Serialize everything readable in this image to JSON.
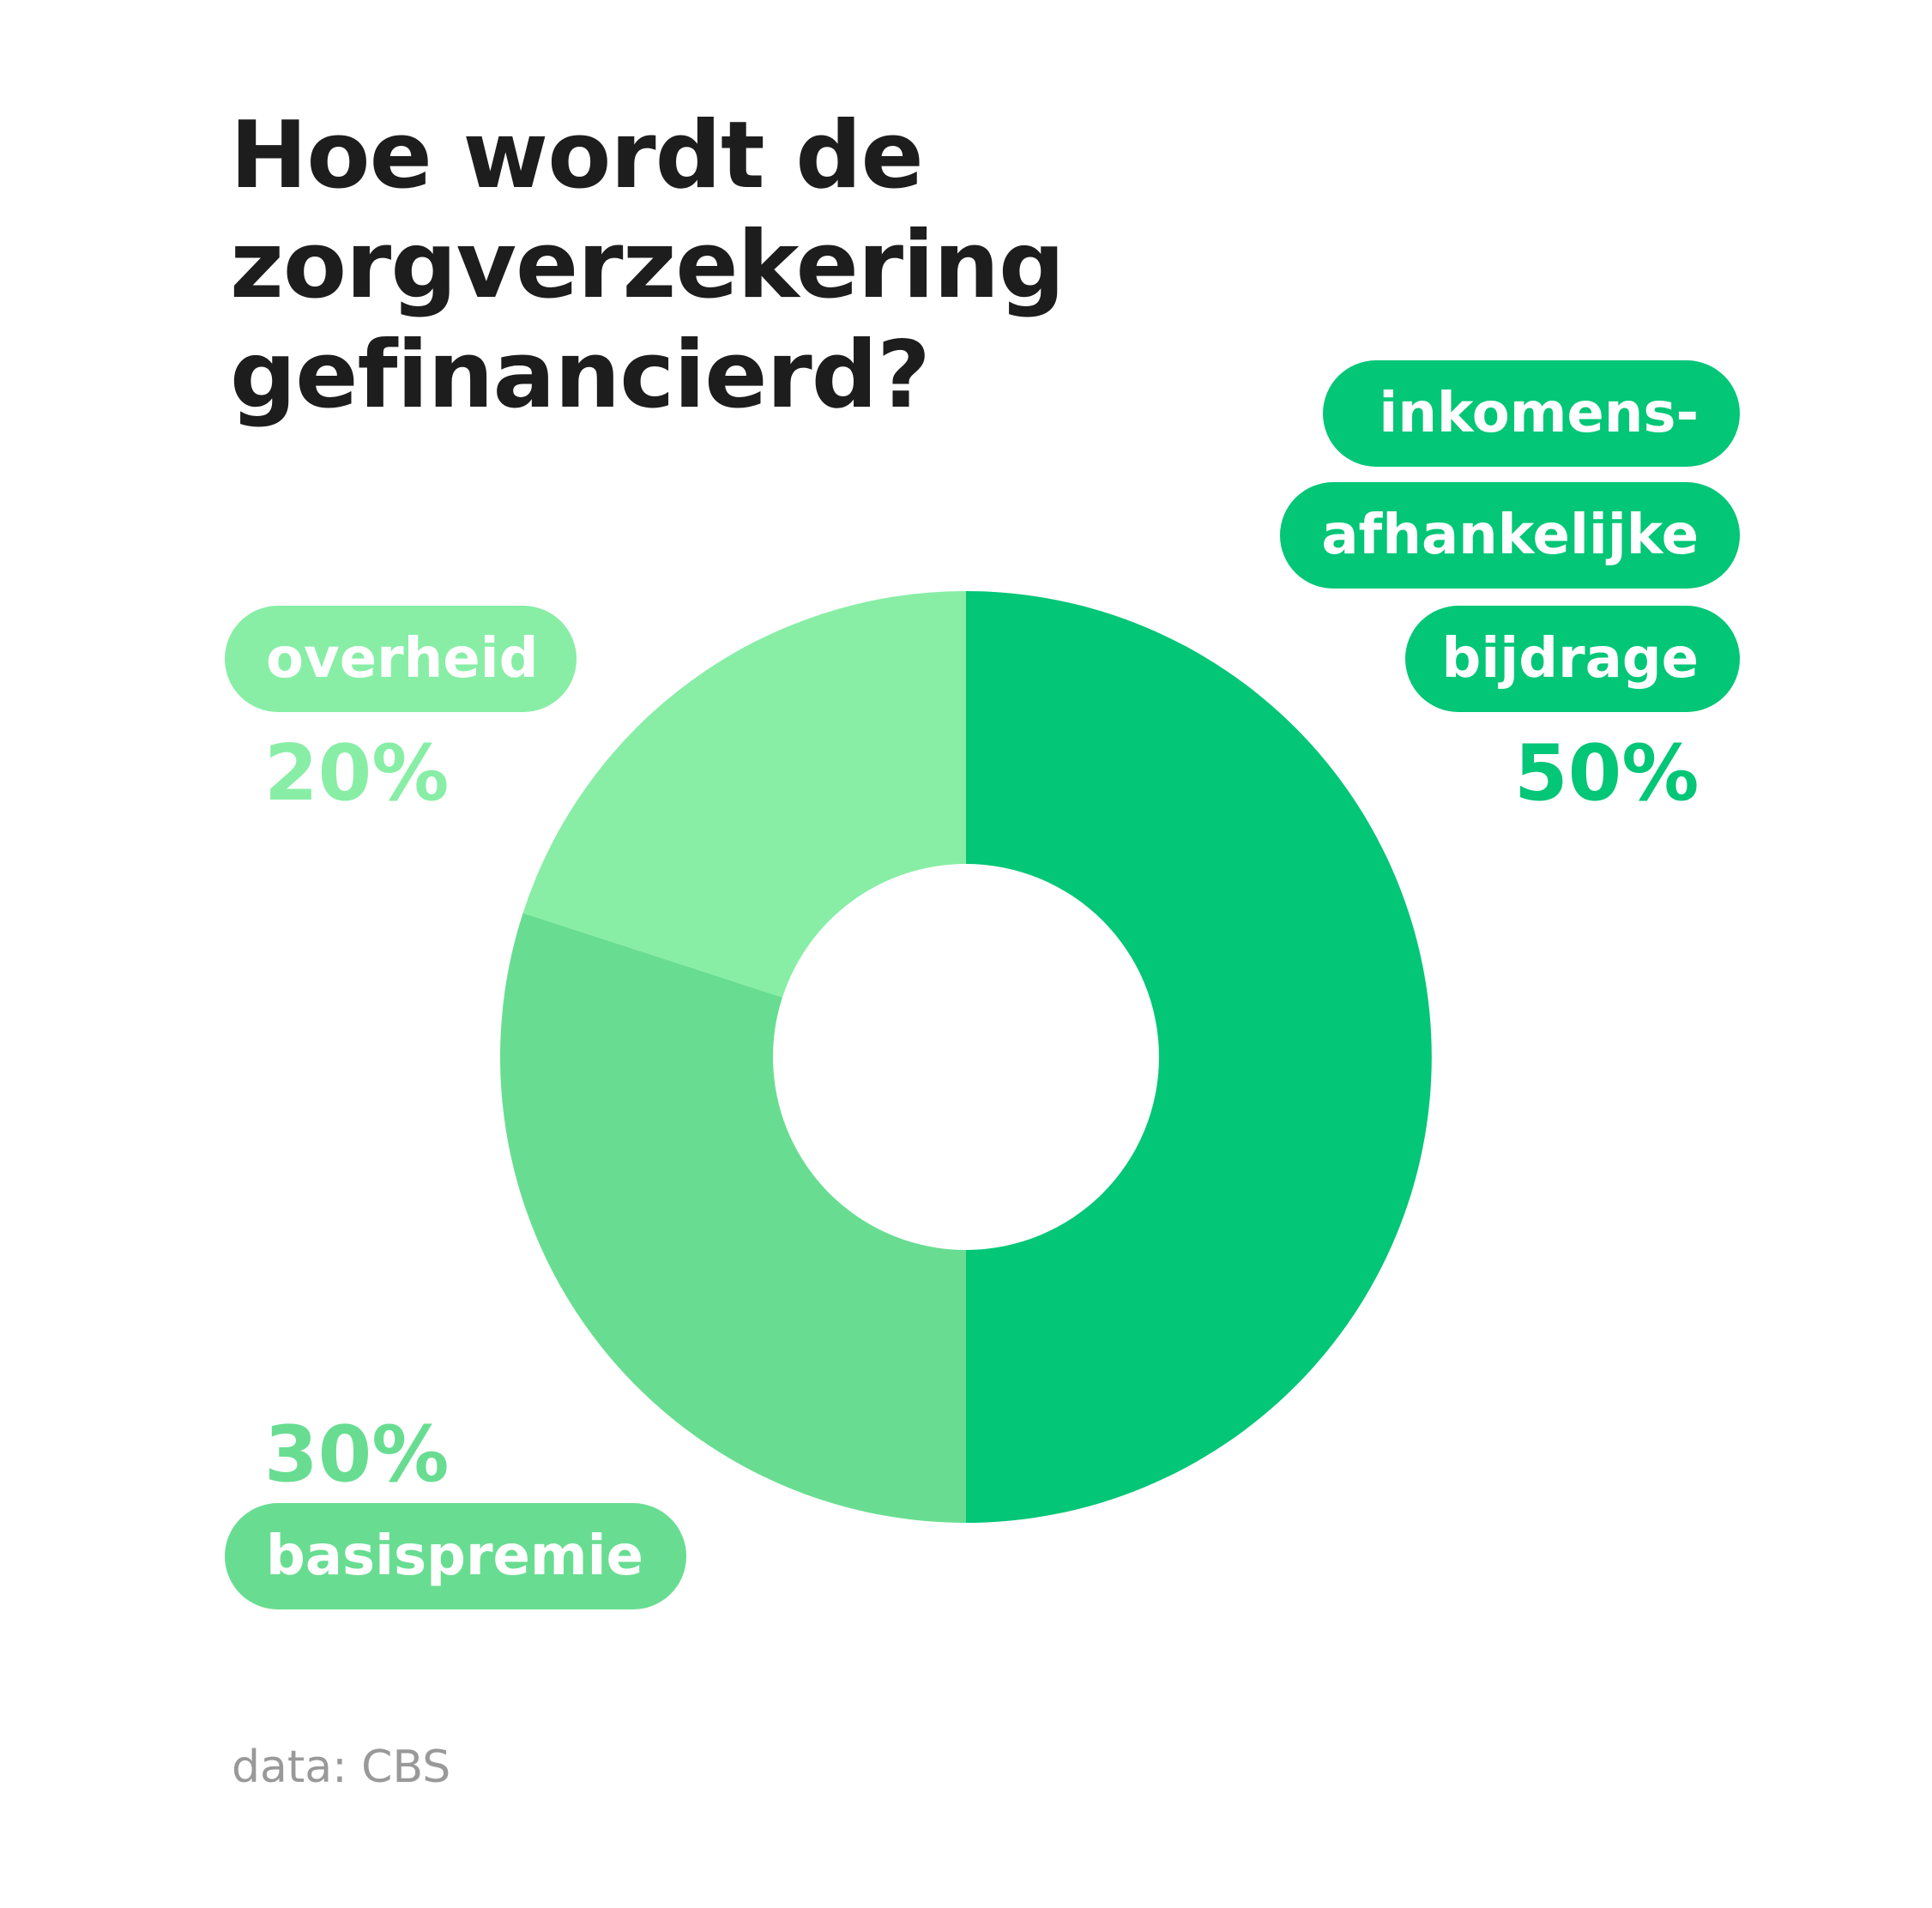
{
  "title_line1": "Hoe wordt de zorgverzekering",
  "title_line2": "gefinancierd?",
  "source": "data: CBS",
  "chart_data": {
    "type": "pie",
    "donut": true,
    "title": "Hoe wordt de zorgverzekering gefinancierd?",
    "slices": [
      {
        "label_lines": [
          "inkomens-",
          "afhankelijke",
          "bijdrage"
        ],
        "value": 50,
        "value_label": "50%",
        "color": "#03c677"
      },
      {
        "label_lines": [
          "basispremie"
        ],
        "value": 30,
        "value_label": "30%",
        "color": "#68dd91"
      },
      {
        "label_lines": [
          "overheid"
        ],
        "value": 20,
        "value_label": "20%",
        "color": "#88eea6"
      }
    ],
    "legend": "labels beside chart"
  }
}
